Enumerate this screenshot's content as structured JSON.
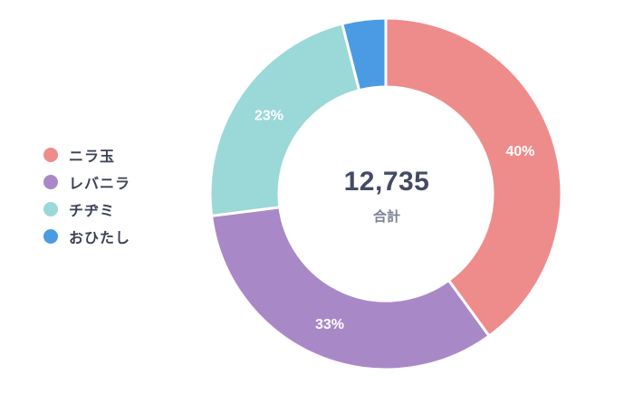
{
  "chart_data": {
    "type": "pie",
    "categories": [
      "ニラ玉",
      "レバニラ",
      "チヂミ",
      "おひたし"
    ],
    "values": [
      40,
      33,
      23,
      4
    ],
    "labels_shown": [
      "40%",
      "33%",
      "23%",
      ""
    ],
    "colors": [
      "#ee8c8c",
      "#a988c8",
      "#9bd8d8",
      "#4a9be4"
    ],
    "center": {
      "total": "12,735",
      "label": "合計"
    },
    "legend_position": "left"
  }
}
